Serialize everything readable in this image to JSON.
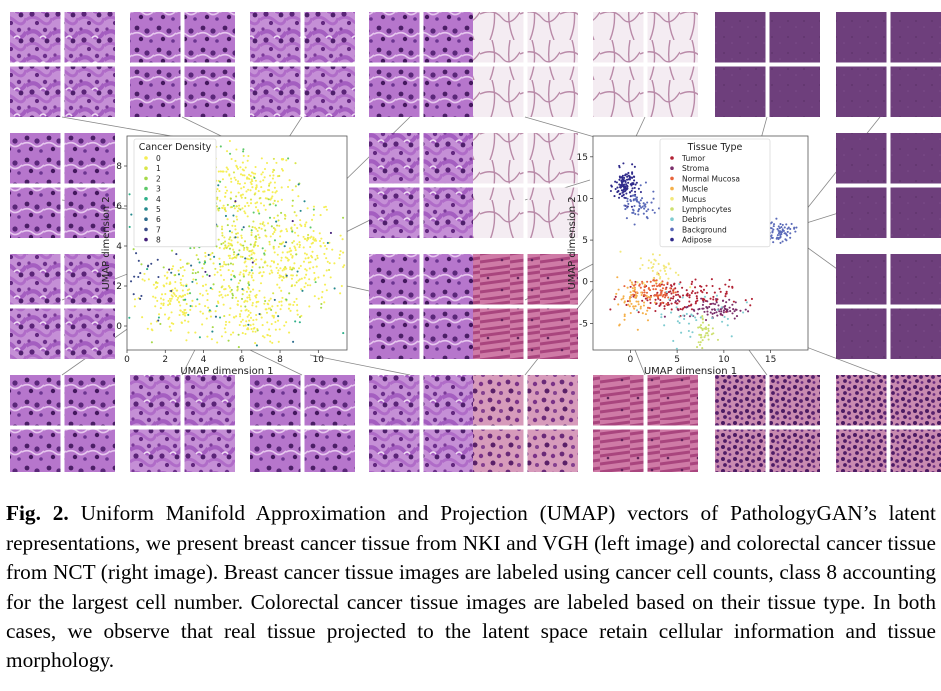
{
  "caption": {
    "label": "Fig. 2.",
    "text": "Uniform Manifold Approximation and Projection (UMAP) vectors of PathologyGAN’s latent representations, we present breast cancer tissue from NKI and VGH (left image) and colorectal cancer tissue from NCT (right image). Breast cancer tissue images are labeled using cancer cell counts, class 8 accounting for the largest cell number. Colorectal cancer tissue images are labeled based on their tissue type. In both cases, we observe that real tissue projected to the latent space retain cellular information and tissue morphology."
  },
  "colors": {
    "he_purple": "#9a4fb5",
    "he_light": "#c890d8",
    "nct_purple": "#6b3a78",
    "nct_pink": "#c77a9c",
    "adipose": "#f3e8f0"
  },
  "chart_data": [
    {
      "type": "scatter",
      "title": "",
      "xlabel": "UMAP dimension 1",
      "ylabel": "UMAP dimension 2",
      "xticks": [
        "0",
        "2",
        "4",
        "6",
        "8",
        "10"
      ],
      "yticks": [
        "0",
        "2",
        "4",
        "6",
        "8"
      ],
      "xlim": [
        0,
        11.5
      ],
      "ylim": [
        -1.2,
        9.5
      ],
      "legend_title": "Cancer Density",
      "legend_position": "top-left",
      "series": [
        {
          "name": "0",
          "color": "#f5ee55"
        },
        {
          "name": "1",
          "color": "#d9e64a"
        },
        {
          "name": "2",
          "color": "#a6d94a"
        },
        {
          "name": "3",
          "color": "#5ec96a"
        },
        {
          "name": "4",
          "color": "#2fb08a"
        },
        {
          "name": "5",
          "color": "#24888c"
        },
        {
          "name": "6",
          "color": "#2c6b8c"
        },
        {
          "name": "7",
          "color": "#3a4b88"
        },
        {
          "name": "8",
          "color": "#44207a"
        }
      ],
      "regions": [
        {
          "series": "0",
          "cx": 6.2,
          "cy": 7.0,
          "sx": 1.3,
          "sy": 0.9,
          "n": 180
        },
        {
          "series": "0",
          "cx": 9.5,
          "cy": 3.4,
          "sx": 1.0,
          "sy": 1.1,
          "n": 150
        },
        {
          "series": "0",
          "cx": 6.5,
          "cy": 3.2,
          "sx": 1.6,
          "sy": 1.2,
          "n": 220
        },
        {
          "series": "0",
          "cx": 2.5,
          "cy": 1.3,
          "sx": 1.0,
          "sy": 0.9,
          "n": 130
        },
        {
          "series": "0",
          "cx": 6.3,
          "cy": 0.5,
          "sx": 1.1,
          "sy": 0.7,
          "n": 120
        },
        {
          "series": "1",
          "cx": 6.0,
          "cy": 4.5,
          "sx": 2.0,
          "sy": 1.8,
          "n": 120
        },
        {
          "series": "2",
          "cx": 5.0,
          "cy": 3.0,
          "sx": 2.4,
          "sy": 2.0,
          "n": 80
        },
        {
          "series": "3",
          "cx": 5.5,
          "cy": 5.0,
          "sx": 2.5,
          "sy": 2.4,
          "n": 50
        },
        {
          "series": "4",
          "cx": 4.0,
          "cy": 2.0,
          "sx": 2.8,
          "sy": 2.2,
          "n": 40
        },
        {
          "series": "5",
          "cx": 5.5,
          "cy": 3.0,
          "sx": 3.0,
          "sy": 2.6,
          "n": 30
        },
        {
          "series": "6",
          "cx": 6.0,
          "cy": 3.5,
          "sx": 3.0,
          "sy": 2.6,
          "n": 20
        },
        {
          "series": "7",
          "cx": 1.0,
          "cy": 2.0,
          "sx": 1.0,
          "sy": 1.2,
          "n": 20
        },
        {
          "series": "8",
          "cx": 5.0,
          "cy": 4.0,
          "sx": 3.0,
          "sy": 2.6,
          "n": 10
        }
      ]
    },
    {
      "type": "scatter",
      "title": "",
      "xlabel": "UMAP dimension 1",
      "ylabel": "UMAP dimension 2",
      "xticks": [
        "0",
        "5",
        "10",
        "15"
      ],
      "yticks": [
        "-5",
        "0",
        "5",
        "10",
        "15"
      ],
      "xlim": [
        -4.0,
        19.0
      ],
      "ylim": [
        -8.2,
        17.5
      ],
      "legend_title": "Tissue Type",
      "legend_position": "top-right",
      "series": [
        {
          "name": "Tumor",
          "color": "#b22234"
        },
        {
          "name": "Stroma",
          "color": "#7b2f6b"
        },
        {
          "name": "Normal Mucosa",
          "color": "#e8643a"
        },
        {
          "name": "Muscle",
          "color": "#f5b04a"
        },
        {
          "name": "Mucus",
          "color": "#f2e87a"
        },
        {
          "name": "Lymphocytes",
          "color": "#cde06f"
        },
        {
          "name": "Debris",
          "color": "#7ecbd0"
        },
        {
          "name": "Background",
          "color": "#5a6ab8"
        },
        {
          "name": "Adipose",
          "color": "#2f2a8a"
        }
      ],
      "regions": [
        {
          "series": "Adipose",
          "cx": -0.5,
          "cy": 11.5,
          "sx": 0.6,
          "sy": 1.0,
          "n": 120
        },
        {
          "series": "Background",
          "cx": 0.8,
          "cy": 9.0,
          "sx": 1.0,
          "sy": 1.0,
          "n": 60
        },
        {
          "series": "Background",
          "cx": 16.0,
          "cy": 6.0,
          "sx": 0.8,
          "sy": 0.6,
          "n": 70
        },
        {
          "series": "Tumor",
          "cx": 5.0,
          "cy": -1.8,
          "sx": 2.8,
          "sy": 1.0,
          "n": 140
        },
        {
          "series": "Stroma",
          "cx": 9.0,
          "cy": -3.3,
          "sx": 1.6,
          "sy": 0.6,
          "n": 80
        },
        {
          "series": "Normal Mucosa",
          "cx": 2.5,
          "cy": -1.0,
          "sx": 1.2,
          "sy": 0.9,
          "n": 80
        },
        {
          "series": "Muscle",
          "cx": 0.5,
          "cy": -2.2,
          "sx": 1.0,
          "sy": 1.4,
          "n": 60
        },
        {
          "series": "Mucus",
          "cx": 3.0,
          "cy": 1.5,
          "sx": 1.2,
          "sy": 1.0,
          "n": 40
        },
        {
          "series": "Lymphocytes",
          "cx": 8.0,
          "cy": -6.0,
          "sx": 0.5,
          "sy": 1.2,
          "n": 40
        },
        {
          "series": "Debris",
          "cx": 6.5,
          "cy": -4.0,
          "sx": 2.5,
          "sy": 1.5,
          "n": 40
        }
      ]
    }
  ]
}
